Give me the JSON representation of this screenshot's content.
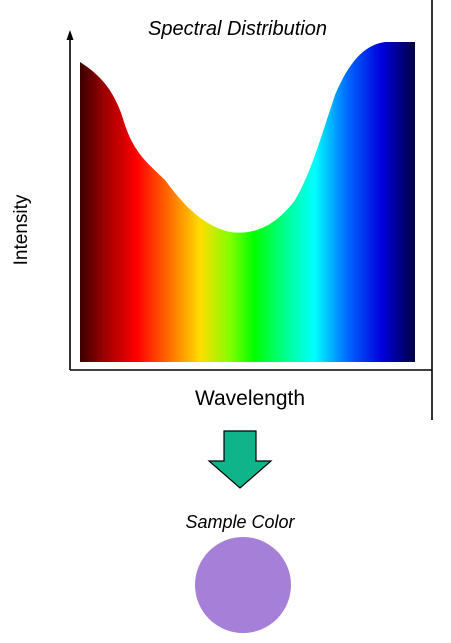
{
  "diagram": {
    "title": "Spectral Distribution",
    "y_axis_label": "Intensity",
    "x_axis_label": "Wavelength",
    "sample_label": "Sample Color",
    "sample_color": "#a680d8",
    "arrow_color": "#0fb48a",
    "spectrum_colors": [
      "#3a0000",
      "#ff0000",
      "#ffcc00",
      "#00ff00",
      "#00ffff",
      "#0044ff",
      "#000044"
    ]
  }
}
